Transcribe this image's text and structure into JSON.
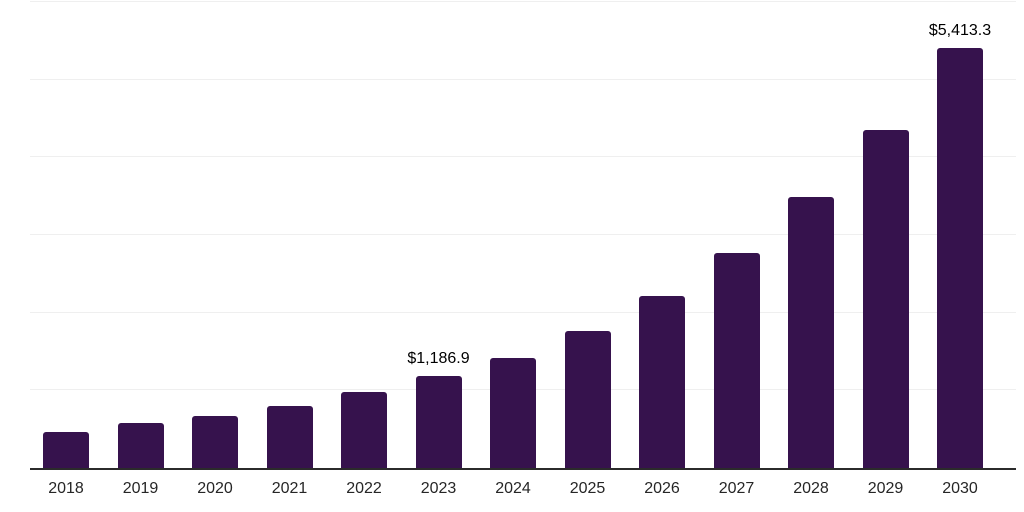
{
  "chart_data": {
    "type": "bar",
    "title": "",
    "xlabel": "",
    "ylabel": "",
    "categories": [
      "2018",
      "2019",
      "2020",
      "2021",
      "2022",
      "2023",
      "2024",
      "2025",
      "2026",
      "2027",
      "2028",
      "2029",
      "2030"
    ],
    "values": [
      465,
      580,
      670,
      800,
      980,
      1186.9,
      1420,
      1765,
      2215,
      2770,
      3490,
      4350,
      5413.3
    ],
    "labeled_points": [
      {
        "category": "2023",
        "label": "$1,186.9"
      },
      {
        "category": "2030",
        "label": "$5,413.3"
      }
    ],
    "ylim": [
      0,
      6000
    ],
    "gridline_step": 1000,
    "grid": true,
    "legend": false,
    "colors": {
      "bar": "#36124d",
      "axis_line": "#2b2b2b",
      "gridline": "#efefef",
      "value_label": "#000000",
      "tick_label": "#262626",
      "background": "#ffffff"
    }
  }
}
